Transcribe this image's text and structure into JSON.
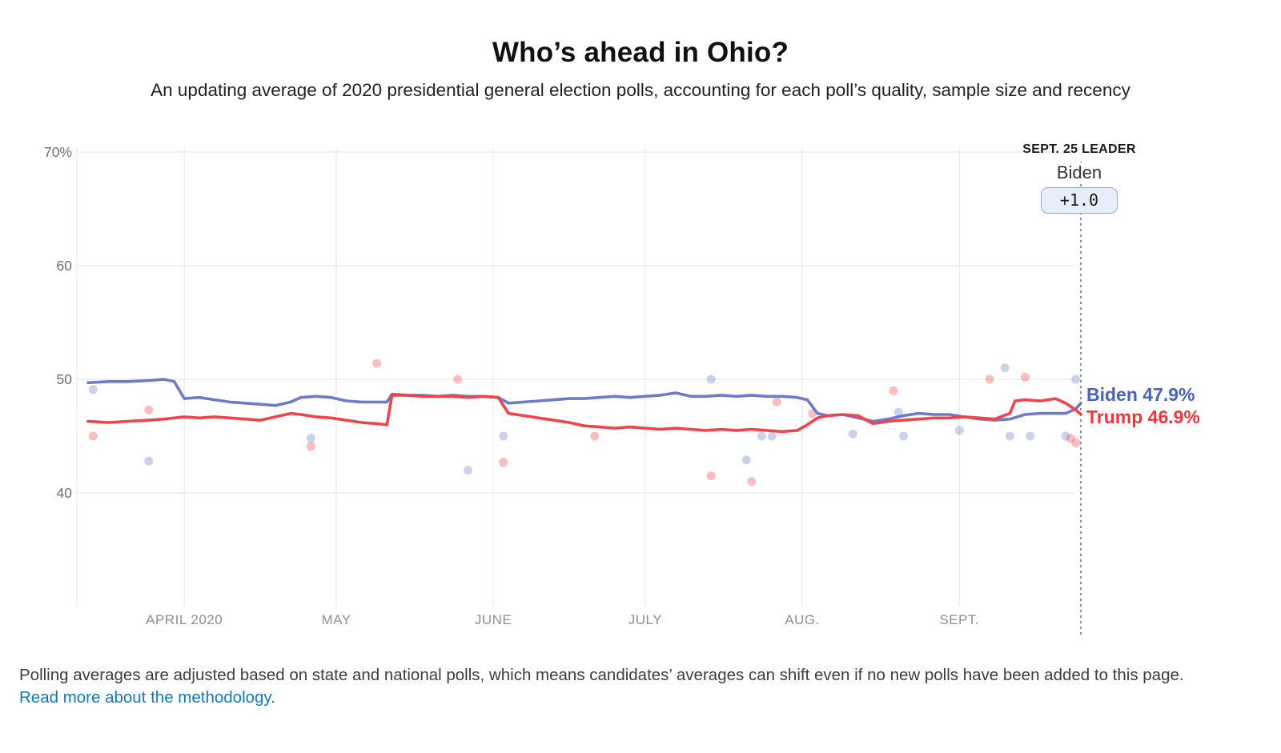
{
  "header": {
    "title": "Who’s ahead in Ohio?",
    "subtitle": "An updating average of 2020 presidential general election polls, accounting for each poll’s quality, sample size and recency"
  },
  "leader": {
    "kicker": "SEPT. 25 LEADER",
    "name": "Biden",
    "margin": "+1.0",
    "date_line_color": "#4a4a4a",
    "badge_border": "#94a9d9",
    "badge_fill": "#e8eef9"
  },
  "chart_data": {
    "type": "line",
    "title": "Who’s ahead in Ohio?",
    "legend_position": "right-of-line-ends",
    "grid": true,
    "x_axis": {
      "domain": [
        "2020-03-13",
        "2020-09-25"
      ],
      "ticks": [
        {
          "date": "2020-04-01",
          "label": "APRIL 2020"
        },
        {
          "date": "2020-05-01",
          "label": "MAY"
        },
        {
          "date": "2020-06-01",
          "label": "JUNE"
        },
        {
          "date": "2020-07-01",
          "label": "JULY"
        },
        {
          "date": "2020-08-01",
          "label": "AUG."
        },
        {
          "date": "2020-09-01",
          "label": "SEPT."
        }
      ]
    },
    "y_axis": {
      "domain": [
        38,
        71
      ],
      "unit": "%",
      "ticks": [
        {
          "value": 70,
          "label": "70%"
        },
        {
          "value": 60,
          "label": "60"
        },
        {
          "value": 50,
          "label": "50"
        },
        {
          "value": 40,
          "label": "40"
        }
      ]
    },
    "series": [
      {
        "name": "Biden",
        "color": "#6e7cc8",
        "final_value": 47.9,
        "points": [
          [
            "2020-03-13",
            49.7
          ],
          [
            "2020-03-17",
            49.8
          ],
          [
            "2020-03-21",
            49.8
          ],
          [
            "2020-03-25",
            49.9
          ],
          [
            "2020-03-28",
            50.0
          ],
          [
            "2020-03-30",
            49.8
          ],
          [
            "2020-04-01",
            48.3
          ],
          [
            "2020-04-04",
            48.4
          ],
          [
            "2020-04-07",
            48.2
          ],
          [
            "2020-04-10",
            48.0
          ],
          [
            "2020-04-13",
            47.9
          ],
          [
            "2020-04-16",
            47.8
          ],
          [
            "2020-04-19",
            47.7
          ],
          [
            "2020-04-22",
            48.0
          ],
          [
            "2020-04-24",
            48.4
          ],
          [
            "2020-04-27",
            48.5
          ],
          [
            "2020-04-30",
            48.4
          ],
          [
            "2020-05-03",
            48.1
          ],
          [
            "2020-05-06",
            48.0
          ],
          [
            "2020-05-09",
            48.0
          ],
          [
            "2020-05-11",
            48.0
          ],
          [
            "2020-05-12",
            48.7
          ],
          [
            "2020-05-15",
            48.6
          ],
          [
            "2020-05-18",
            48.6
          ],
          [
            "2020-05-21",
            48.5
          ],
          [
            "2020-05-24",
            48.6
          ],
          [
            "2020-05-27",
            48.5
          ],
          [
            "2020-05-30",
            48.5
          ],
          [
            "2020-06-02",
            48.4
          ],
          [
            "2020-06-04",
            47.9
          ],
          [
            "2020-06-07",
            48.0
          ],
          [
            "2020-06-10",
            48.1
          ],
          [
            "2020-06-13",
            48.2
          ],
          [
            "2020-06-16",
            48.3
          ],
          [
            "2020-06-19",
            48.3
          ],
          [
            "2020-06-22",
            48.4
          ],
          [
            "2020-06-25",
            48.5
          ],
          [
            "2020-06-28",
            48.4
          ],
          [
            "2020-07-01",
            48.5
          ],
          [
            "2020-07-04",
            48.6
          ],
          [
            "2020-07-07",
            48.8
          ],
          [
            "2020-07-10",
            48.5
          ],
          [
            "2020-07-13",
            48.5
          ],
          [
            "2020-07-16",
            48.6
          ],
          [
            "2020-07-19",
            48.5
          ],
          [
            "2020-07-22",
            48.6
          ],
          [
            "2020-07-25",
            48.5
          ],
          [
            "2020-07-28",
            48.5
          ],
          [
            "2020-07-31",
            48.4
          ],
          [
            "2020-08-02",
            48.2
          ],
          [
            "2020-08-04",
            47.0
          ],
          [
            "2020-08-06",
            46.8
          ],
          [
            "2020-08-09",
            46.9
          ],
          [
            "2020-08-12",
            46.6
          ],
          [
            "2020-08-15",
            46.3
          ],
          [
            "2020-08-18",
            46.5
          ],
          [
            "2020-08-21",
            46.8
          ],
          [
            "2020-08-24",
            47.0
          ],
          [
            "2020-08-27",
            46.9
          ],
          [
            "2020-08-30",
            46.9
          ],
          [
            "2020-09-02",
            46.7
          ],
          [
            "2020-09-05",
            46.5
          ],
          [
            "2020-09-08",
            46.4
          ],
          [
            "2020-09-11",
            46.5
          ],
          [
            "2020-09-14",
            46.9
          ],
          [
            "2020-09-17",
            47.0
          ],
          [
            "2020-09-20",
            47.0
          ],
          [
            "2020-09-22",
            47.0
          ],
          [
            "2020-09-24",
            47.4
          ],
          [
            "2020-09-25",
            47.9
          ]
        ]
      },
      {
        "name": "Trump",
        "color": "#f0434a",
        "final_value": 46.9,
        "points": [
          [
            "2020-03-13",
            46.3
          ],
          [
            "2020-03-17",
            46.2
          ],
          [
            "2020-03-21",
            46.3
          ],
          [
            "2020-03-25",
            46.4
          ],
          [
            "2020-03-28",
            46.5
          ],
          [
            "2020-03-30",
            46.6
          ],
          [
            "2020-04-01",
            46.7
          ],
          [
            "2020-04-04",
            46.6
          ],
          [
            "2020-04-07",
            46.7
          ],
          [
            "2020-04-10",
            46.6
          ],
          [
            "2020-04-13",
            46.5
          ],
          [
            "2020-04-16",
            46.4
          ],
          [
            "2020-04-19",
            46.7
          ],
          [
            "2020-04-22",
            47.0
          ],
          [
            "2020-04-24",
            46.9
          ],
          [
            "2020-04-27",
            46.7
          ],
          [
            "2020-04-30",
            46.6
          ],
          [
            "2020-05-03",
            46.4
          ],
          [
            "2020-05-06",
            46.2
          ],
          [
            "2020-05-09",
            46.1
          ],
          [
            "2020-05-11",
            46.0
          ],
          [
            "2020-05-12",
            48.6
          ],
          [
            "2020-05-15",
            48.6
          ],
          [
            "2020-05-18",
            48.5
          ],
          [
            "2020-05-21",
            48.5
          ],
          [
            "2020-05-24",
            48.5
          ],
          [
            "2020-05-27",
            48.4
          ],
          [
            "2020-05-30",
            48.5
          ],
          [
            "2020-06-02",
            48.4
          ],
          [
            "2020-06-04",
            47.0
          ],
          [
            "2020-06-07",
            46.8
          ],
          [
            "2020-06-10",
            46.6
          ],
          [
            "2020-06-13",
            46.4
          ],
          [
            "2020-06-16",
            46.2
          ],
          [
            "2020-06-19",
            45.9
          ],
          [
            "2020-06-22",
            45.8
          ],
          [
            "2020-06-25",
            45.7
          ],
          [
            "2020-06-28",
            45.8
          ],
          [
            "2020-07-01",
            45.7
          ],
          [
            "2020-07-04",
            45.6
          ],
          [
            "2020-07-07",
            45.7
          ],
          [
            "2020-07-10",
            45.6
          ],
          [
            "2020-07-13",
            45.5
          ],
          [
            "2020-07-16",
            45.6
          ],
          [
            "2020-07-19",
            45.5
          ],
          [
            "2020-07-22",
            45.6
          ],
          [
            "2020-07-25",
            45.5
          ],
          [
            "2020-07-28",
            45.4
          ],
          [
            "2020-07-31",
            45.5
          ],
          [
            "2020-08-02",
            46.0
          ],
          [
            "2020-08-04",
            46.6
          ],
          [
            "2020-08-06",
            46.8
          ],
          [
            "2020-08-09",
            46.9
          ],
          [
            "2020-08-12",
            46.8
          ],
          [
            "2020-08-15",
            46.1
          ],
          [
            "2020-08-18",
            46.3
          ],
          [
            "2020-08-21",
            46.4
          ],
          [
            "2020-08-24",
            46.5
          ],
          [
            "2020-08-27",
            46.6
          ],
          [
            "2020-08-30",
            46.6
          ],
          [
            "2020-09-02",
            46.7
          ],
          [
            "2020-09-05",
            46.6
          ],
          [
            "2020-09-08",
            46.5
          ],
          [
            "2020-09-11",
            47.0
          ],
          [
            "2020-09-12",
            48.1
          ],
          [
            "2020-09-14",
            48.2
          ],
          [
            "2020-09-17",
            48.1
          ],
          [
            "2020-09-20",
            48.3
          ],
          [
            "2020-09-22",
            47.9
          ],
          [
            "2020-09-24",
            47.3
          ],
          [
            "2020-09-25",
            46.9
          ]
        ]
      }
    ],
    "scatter": [
      {
        "name": "Biden polls",
        "color": "#6e7cc8",
        "opacity": 0.35,
        "points": [
          [
            "2020-03-14",
            49.1
          ],
          [
            "2020-03-25",
            42.8
          ],
          [
            "2020-04-26",
            44.8
          ],
          [
            "2020-05-27",
            42.0
          ],
          [
            "2020-06-03",
            45.0
          ],
          [
            "2020-07-14",
            50.0
          ],
          [
            "2020-07-21",
            42.9
          ],
          [
            "2020-07-24",
            45.0
          ],
          [
            "2020-07-26",
            45.0
          ],
          [
            "2020-08-11",
            45.2
          ],
          [
            "2020-08-20",
            47.1
          ],
          [
            "2020-08-21",
            45.0
          ],
          [
            "2020-09-01",
            45.5
          ],
          [
            "2020-09-10",
            51.0
          ],
          [
            "2020-09-11",
            45.0
          ],
          [
            "2020-09-15",
            45.0
          ],
          [
            "2020-09-22",
            45.0
          ],
          [
            "2020-09-24",
            50.0
          ]
        ]
      },
      {
        "name": "Trump polls",
        "color": "#f0434a",
        "opacity": 0.35,
        "points": [
          [
            "2020-03-14",
            45.0
          ],
          [
            "2020-03-25",
            47.3
          ],
          [
            "2020-04-26",
            44.1
          ],
          [
            "2020-05-09",
            51.4
          ],
          [
            "2020-05-25",
            50.0
          ],
          [
            "2020-06-03",
            42.7
          ],
          [
            "2020-06-21",
            45.0
          ],
          [
            "2020-07-14",
            41.5
          ],
          [
            "2020-07-22",
            41.0
          ],
          [
            "2020-07-27",
            48.0
          ],
          [
            "2020-08-03",
            47.0
          ],
          [
            "2020-08-19",
            49.0
          ],
          [
            "2020-09-07",
            50.0
          ],
          [
            "2020-09-14",
            50.2
          ],
          [
            "2020-09-23",
            44.8
          ],
          [
            "2020-09-24",
            44.4
          ]
        ]
      }
    ],
    "end_labels": {
      "biden": "Biden 47.9%",
      "trump": "Trump 46.9%"
    },
    "end_label_colors": {
      "biden": "#4a63bb",
      "trump": "#f0353d"
    }
  },
  "footer": {
    "text": "Polling averages are adjusted based on state and national polls, which means candidates’ averages can shift even if no new polls have been added to this page. ",
    "link_text": "Read more about the methodology.",
    "link_color": "#1479b8"
  }
}
